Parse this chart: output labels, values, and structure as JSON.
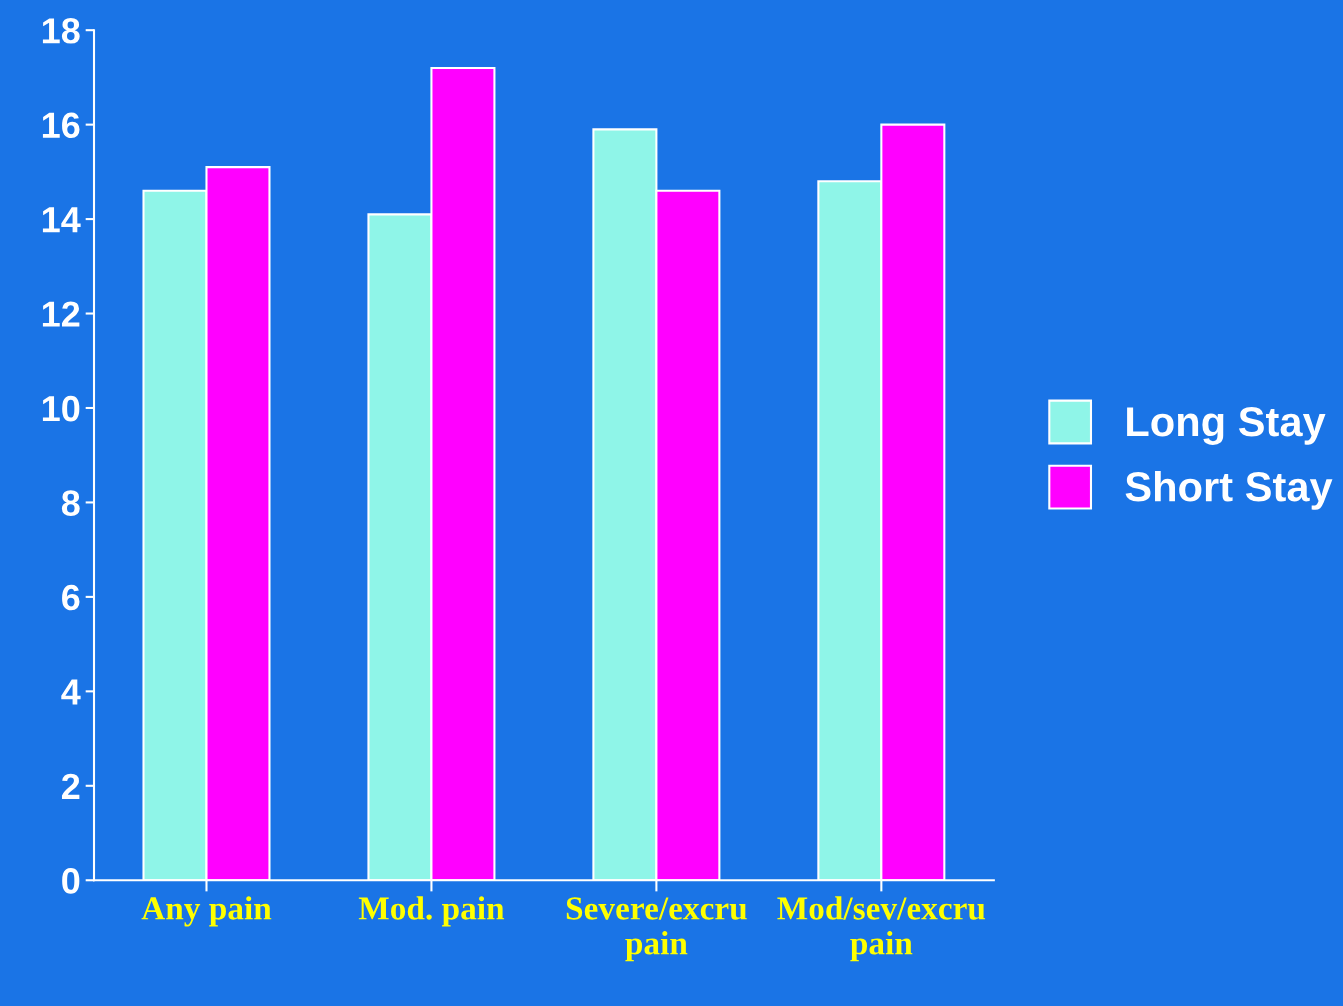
{
  "chart_data": {
    "type": "bar",
    "categories": [
      "Any pain",
      "Mod. pain",
      "Severe/excru\npain",
      "Mod/sev/excru\npain"
    ],
    "series": [
      {
        "name": "Long Stay",
        "color": "#8ff5e8",
        "values": [
          14.6,
          14.1,
          15.9,
          14.8
        ]
      },
      {
        "name": "Short Stay",
        "color": "#ff00ff",
        "values": [
          15.1,
          17.2,
          14.6,
          16.0
        ]
      }
    ],
    "ylim": [
      0,
      18
    ],
    "yticks": [
      0,
      2,
      4,
      6,
      8,
      10,
      12,
      14,
      16,
      18
    ],
    "grid": false,
    "legend": "right"
  }
}
